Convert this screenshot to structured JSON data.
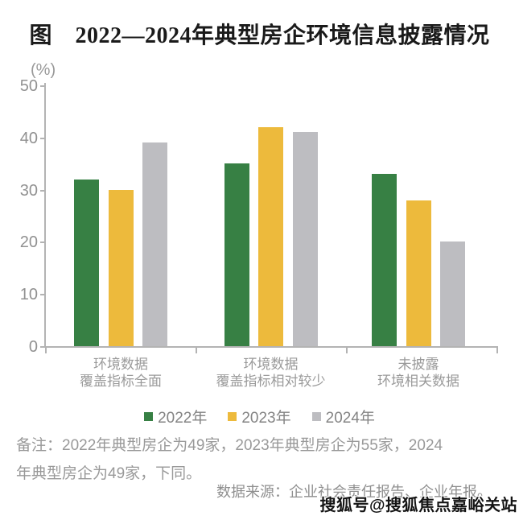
{
  "title": "图　2022—2024年典型房企环境信息披露情况",
  "chart_data": {
    "type": "bar",
    "title": "图 2022—2024年典型房企环境信息披露情况",
    "unit_label": "(%)",
    "xlabel": "",
    "ylabel": "(%)",
    "ylim": [
      0,
      50
    ],
    "yticks": [
      0,
      10,
      20,
      30,
      40,
      50
    ],
    "grid": false,
    "legend_position": "bottom",
    "categories": [
      [
        "环境数据",
        "覆盖指标全面"
      ],
      [
        "环境数据",
        "覆盖指标相对较少"
      ],
      [
        "未披露",
        "环境相关数据"
      ]
    ],
    "series": [
      {
        "name": "2022年",
        "color": "#378044",
        "values": [
          32,
          35,
          33
        ]
      },
      {
        "name": "2023年",
        "color": "#EDBA3C",
        "values": [
          30,
          42,
          28
        ]
      },
      {
        "name": "2024年",
        "color": "#BDBDC1",
        "values": [
          39,
          41,
          20
        ]
      }
    ],
    "axis_color": "#b3b3b3",
    "label_color": "#999999"
  },
  "footnote": {
    "line1": "备注：2022年典型房企为49家，2023年典型房企为55家，2024",
    "line2": "年典型房企为49家，下同。"
  },
  "source": "数据来源：企业社会责任报告、企业年报。",
  "watermark": "搜狐号@搜狐焦点嘉峪关站"
}
